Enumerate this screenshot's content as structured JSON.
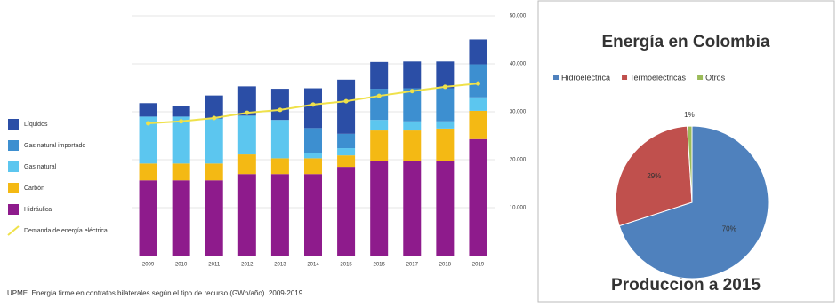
{
  "chart_data": [
    {
      "type": "bar",
      "stacked": true,
      "source": "UPME. Energía firme en contratos bilaterales según el tipo de recurso (GWh/año). 2009-2019.",
      "categories": [
        "2009",
        "2010",
        "2011",
        "2012",
        "2013",
        "2014",
        "2015",
        "2016",
        "2017",
        "2018",
        "2019"
      ],
      "series": [
        {
          "name": "Hidráulica",
          "color": "#8e1b8c",
          "values": [
            15700,
            15700,
            15700,
            17000,
            17000,
            17000,
            18500,
            19800,
            19800,
            19800,
            24300
          ]
        },
        {
          "name": "Carbón",
          "color": "#f4b914",
          "values": [
            3500,
            3500,
            3500,
            4100,
            3300,
            3300,
            2400,
            6300,
            6300,
            6700,
            5900
          ]
        },
        {
          "name": "Gas natural",
          "color": "#5cc6ef",
          "values": [
            9800,
            9800,
            9400,
            8100,
            8000,
            1100,
            1500,
            2200,
            1900,
            1500,
            2800
          ]
        },
        {
          "name": "Gas natural importado",
          "color": "#3d8fd0",
          "values": [
            0,
            0,
            0,
            0,
            0,
            5200,
            3000,
            6500,
            6900,
            6900,
            6900
          ]
        },
        {
          "name": "Líquidos",
          "color": "#2b4ea6",
          "values": [
            2800,
            2200,
            4800,
            6100,
            6500,
            8300,
            11300,
            5600,
            5600,
            5600,
            5200
          ]
        },
        {
          "name": "Demanda de energía eléctrica",
          "type": "line",
          "color": "#efe14a",
          "values": [
            27600,
            28000,
            28700,
            29800,
            30400,
            31500,
            32200,
            33300,
            34300,
            35200,
            35900
          ]
        }
      ],
      "ylim": [
        0,
        50000
      ],
      "yticks": [
        {
          "value": 10000,
          "label": "10.000"
        },
        {
          "value": 20000,
          "label": "20.000"
        },
        {
          "value": 30000,
          "label": "30.000"
        },
        {
          "value": 40000,
          "label": "40.000"
        },
        {
          "value": 50000,
          "label": "50.000"
        }
      ],
      "grid": true
    },
    {
      "type": "pie",
      "title": "Energía en Colombia",
      "subtitle": "Produccion a 2015",
      "categories": [
        "Hidroeléctrica",
        "Termoeléctricas",
        "Otros"
      ],
      "values": [
        70,
        29,
        1
      ],
      "value_labels": [
        "70%",
        "29%",
        "1%"
      ],
      "colors": [
        "#4f81bd",
        "#c0504d",
        "#9bbb59"
      ],
      "legend": "top"
    }
  ]
}
